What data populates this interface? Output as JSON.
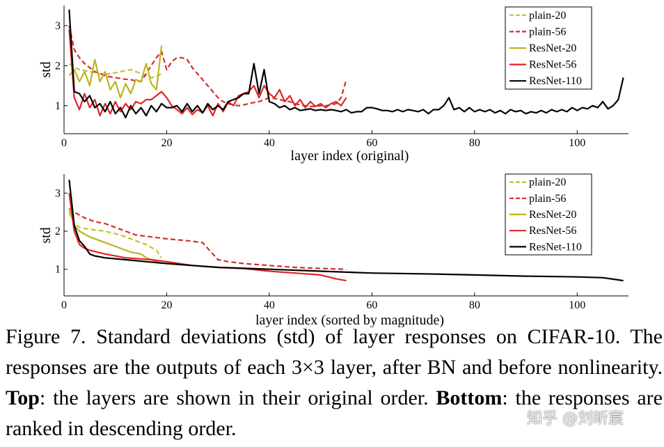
{
  "colors": {
    "plain20": "#c5c22a",
    "plain56": "#d42d2d",
    "resnet20": "#b9b51e",
    "resnet56": "#e02424",
    "resnet110": "#000000"
  },
  "chart_data": [
    {
      "type": "line",
      "title": "",
      "xlabel": "layer index (original)",
      "ylabel": "std",
      "xlim": [
        0,
        110
      ],
      "ylim": [
        0.3,
        3.5
      ],
      "xticks": [
        0,
        20,
        40,
        60,
        80,
        100
      ],
      "yticks": [
        1,
        2,
        3
      ],
      "legend_position": "top-right",
      "series": [
        {
          "name": "plain-20",
          "style": "dashed",
          "color_key": "plain20",
          "x": [
            1,
            2,
            3,
            4,
            5,
            6,
            7,
            8,
            9,
            10,
            11,
            12,
            13,
            14,
            15,
            16,
            17,
            18,
            19
          ],
          "values": [
            2.05,
            1.95,
            1.9,
            1.88,
            1.85,
            1.82,
            1.8,
            1.78,
            1.8,
            1.82,
            1.85,
            1.88,
            1.9,
            1.85,
            1.8,
            1.75,
            1.7,
            1.72,
            1.8
          ]
        },
        {
          "name": "plain-56",
          "style": "dashed",
          "color_key": "plain56",
          "x": [
            1,
            2,
            3,
            4,
            5,
            6,
            7,
            8,
            9,
            10,
            11,
            12,
            13,
            14,
            15,
            16,
            17,
            18,
            19,
            20,
            21,
            22,
            23,
            24,
            25,
            26,
            27,
            28,
            29,
            30,
            31,
            32,
            33,
            34,
            35,
            36,
            37,
            38,
            39,
            40,
            41,
            42,
            43,
            44,
            45,
            46,
            47,
            48,
            49,
            50,
            51,
            52,
            53,
            54,
            55
          ],
          "values": [
            3.0,
            2.4,
            2.2,
            2.05,
            1.95,
            1.85,
            1.8,
            1.75,
            1.72,
            1.7,
            1.68,
            1.66,
            1.65,
            1.62,
            1.6,
            1.8,
            2.0,
            2.2,
            2.35,
            1.9,
            2.1,
            2.2,
            2.2,
            2.15,
            1.95,
            1.8,
            1.65,
            1.5,
            1.35,
            1.2,
            1.1,
            1.05,
            1.02,
            1.0,
            1.02,
            1.05,
            1.08,
            1.1,
            1.15,
            1.2,
            1.18,
            1.15,
            1.12,
            1.1,
            1.05,
            1.02,
            1.0,
            0.98,
            0.98,
            1.0,
            1.0,
            1.02,
            1.05,
            1.2,
            1.65
          ]
        },
        {
          "name": "ResNet-20",
          "style": "solid",
          "color_key": "resnet20",
          "x": [
            1,
            2,
            3,
            4,
            5,
            6,
            7,
            8,
            9,
            10,
            11,
            12,
            13,
            14,
            15,
            16,
            17,
            18,
            19
          ],
          "values": [
            1.75,
            1.9,
            1.6,
            1.85,
            1.5,
            2.15,
            1.6,
            1.85,
            1.4,
            1.6,
            1.2,
            1.55,
            1.3,
            1.65,
            1.6,
            2.05,
            1.55,
            1.4,
            2.5
          ]
        },
        {
          "name": "ResNet-56",
          "style": "solid",
          "color_key": "resnet56",
          "x": [
            1,
            2,
            3,
            4,
            5,
            6,
            7,
            8,
            9,
            10,
            11,
            12,
            13,
            14,
            15,
            16,
            17,
            18,
            19,
            20,
            21,
            22,
            23,
            24,
            25,
            26,
            27,
            28,
            29,
            30,
            31,
            32,
            33,
            34,
            35,
            36,
            37,
            38,
            39,
            40,
            41,
            42,
            43,
            44,
            45,
            46,
            47,
            48,
            49,
            50,
            51,
            52,
            53,
            54,
            55
          ],
          "values": [
            2.9,
            1.2,
            0.9,
            1.3,
            0.95,
            1.15,
            0.75,
            1.05,
            0.8,
            1.1,
            0.85,
            1.05,
            0.9,
            1.1,
            1.05,
            1.15,
            1.15,
            1.25,
            1.35,
            1.2,
            1.0,
            0.9,
            0.8,
            0.95,
            0.78,
            0.9,
            0.82,
            1.0,
            0.75,
            1.05,
            0.85,
            1.1,
            1.0,
            1.25,
            1.3,
            1.35,
            1.5,
            1.2,
            1.5,
            1.3,
            1.2,
            1.4,
            1.1,
            1.25,
            1.0,
            1.15,
            0.95,
            1.1,
            0.98,
            1.05,
            0.95,
            1.05,
            1.1,
            1.0,
            1.2
          ]
        },
        {
          "name": "ResNet-110",
          "style": "solid",
          "color_key": "resnet110",
          "x": [
            1,
            2,
            3,
            4,
            5,
            6,
            7,
            8,
            9,
            10,
            11,
            12,
            13,
            14,
            15,
            16,
            17,
            18,
            19,
            20,
            21,
            22,
            23,
            24,
            25,
            26,
            27,
            28,
            29,
            30,
            31,
            32,
            33,
            34,
            35,
            36,
            37,
            38,
            39,
            40,
            41,
            42,
            43,
            44,
            45,
            46,
            47,
            48,
            49,
            50,
            51,
            52,
            53,
            54,
            55,
            56,
            57,
            58,
            59,
            60,
            61,
            62,
            63,
            64,
            65,
            66,
            67,
            68,
            69,
            70,
            71,
            72,
            73,
            74,
            75,
            76,
            77,
            78,
            79,
            80,
            81,
            82,
            83,
            84,
            85,
            86,
            87,
            88,
            89,
            90,
            91,
            92,
            93,
            94,
            95,
            96,
            97,
            98,
            99,
            100,
            101,
            102,
            103,
            104,
            105,
            106,
            107,
            108,
            109
          ],
          "values": [
            3.4,
            1.35,
            1.3,
            1.1,
            1.25,
            0.95,
            1.05,
            0.85,
            1.1,
            0.8,
            0.95,
            0.7,
            1.0,
            0.8,
            0.95,
            0.75,
            1.0,
            0.85,
            1.05,
            0.95,
            0.95,
            1.0,
            0.85,
            1.05,
            0.85,
            1.0,
            0.82,
            1.05,
            0.9,
            1.0,
            0.9,
            1.1,
            1.15,
            1.2,
            1.3,
            1.3,
            2.05,
            1.3,
            1.9,
            1.1,
            1.05,
            0.95,
            1.0,
            0.9,
            0.95,
            0.88,
            0.9,
            0.92,
            0.88,
            0.9,
            0.88,
            0.9,
            0.88,
            0.85,
            0.9,
            0.82,
            0.85,
            0.85,
            0.95,
            0.95,
            0.92,
            0.88,
            0.88,
            0.85,
            0.9,
            0.85,
            0.9,
            0.88,
            0.85,
            0.9,
            0.8,
            0.9,
            0.9,
            1.0,
            1.2,
            0.9,
            0.95,
            0.85,
            0.95,
            0.85,
            0.9,
            0.85,
            0.9,
            0.82,
            0.88,
            0.8,
            0.9,
            0.85,
            0.88,
            0.8,
            0.85,
            0.82,
            0.88,
            0.82,
            0.9,
            0.85,
            0.9,
            0.85,
            0.95,
            0.88,
            0.95,
            0.92,
            1.0,
            0.95,
            1.1,
            0.92,
            1.0,
            1.15,
            1.7
          ]
        }
      ]
    },
    {
      "type": "line",
      "title": "",
      "xlabel": "layer index (sorted by magnitude)",
      "ylabel": "std",
      "xlim": [
        0,
        110
      ],
      "ylim": [
        0.3,
        3.5
      ],
      "xticks": [
        0,
        20,
        40,
        60,
        80,
        100
      ],
      "yticks": [
        1,
        2,
        3
      ],
      "legend_position": "top-right",
      "series": [
        {
          "name": "plain-20",
          "style": "dashed",
          "color_key": "plain20",
          "x": [
            1,
            2,
            3,
            5,
            8,
            11,
            14,
            16,
            18,
            19
          ],
          "values": [
            2.5,
            2.2,
            2.1,
            2.05,
            2.0,
            1.9,
            1.75,
            1.65,
            1.5,
            1.3
          ]
        },
        {
          "name": "plain-56",
          "style": "dashed",
          "color_key": "plain56",
          "x": [
            1,
            2,
            4,
            6,
            8,
            10,
            12,
            14,
            17,
            20,
            24,
            27,
            28,
            30,
            32,
            35,
            40,
            45,
            50,
            55
          ],
          "values": [
            2.6,
            2.5,
            2.35,
            2.25,
            2.2,
            2.1,
            2.0,
            1.9,
            1.85,
            1.8,
            1.75,
            1.7,
            1.55,
            1.25,
            1.2,
            1.15,
            1.1,
            1.05,
            1.02,
            1.0
          ]
        },
        {
          "name": "ResNet-20",
          "style": "solid",
          "color_key": "resnet20",
          "x": [
            1,
            2,
            3,
            5,
            7,
            10,
            13,
            15,
            16,
            17,
            18,
            19
          ],
          "values": [
            2.6,
            2.15,
            2.0,
            1.85,
            1.75,
            1.6,
            1.45,
            1.4,
            1.3,
            1.25,
            1.2,
            1.15
          ]
        },
        {
          "name": "ResNet-56",
          "style": "solid",
          "color_key": "resnet56",
          "x": [
            1,
            2,
            3,
            4,
            5,
            8,
            12,
            17,
            20,
            25,
            30,
            35,
            40,
            45,
            50,
            53,
            55
          ],
          "values": [
            3.0,
            2.0,
            1.65,
            1.55,
            1.5,
            1.4,
            1.3,
            1.25,
            1.2,
            1.1,
            1.05,
            1.02,
            0.95,
            0.9,
            0.85,
            0.75,
            0.7
          ]
        },
        {
          "name": "ResNet-110",
          "style": "solid",
          "color_key": "resnet110",
          "x": [
            1,
            2,
            3,
            4,
            5,
            6,
            8,
            12,
            16,
            20,
            25,
            30,
            40,
            50,
            60,
            70,
            80,
            90,
            100,
            105,
            108,
            109
          ],
          "values": [
            3.35,
            2.15,
            1.75,
            1.6,
            1.4,
            1.35,
            1.3,
            1.25,
            1.2,
            1.15,
            1.1,
            1.05,
            1.0,
            0.95,
            0.9,
            0.88,
            0.85,
            0.82,
            0.8,
            0.78,
            0.72,
            0.7
          ]
        }
      ]
    }
  ],
  "caption": {
    "part1": "Figure 7. Standard deviations (std) of layer responses on CIFAR-10. The responses are the outputs of each 3×3 layer, after BN and before nonlinearity. ",
    "bold1": "Top",
    "part2": ": the layers are shown in their original order. ",
    "bold2": "Bottom",
    "part3": ": the responses are ranked in descending order."
  },
  "watermark": "知乎 @刘昕宸"
}
